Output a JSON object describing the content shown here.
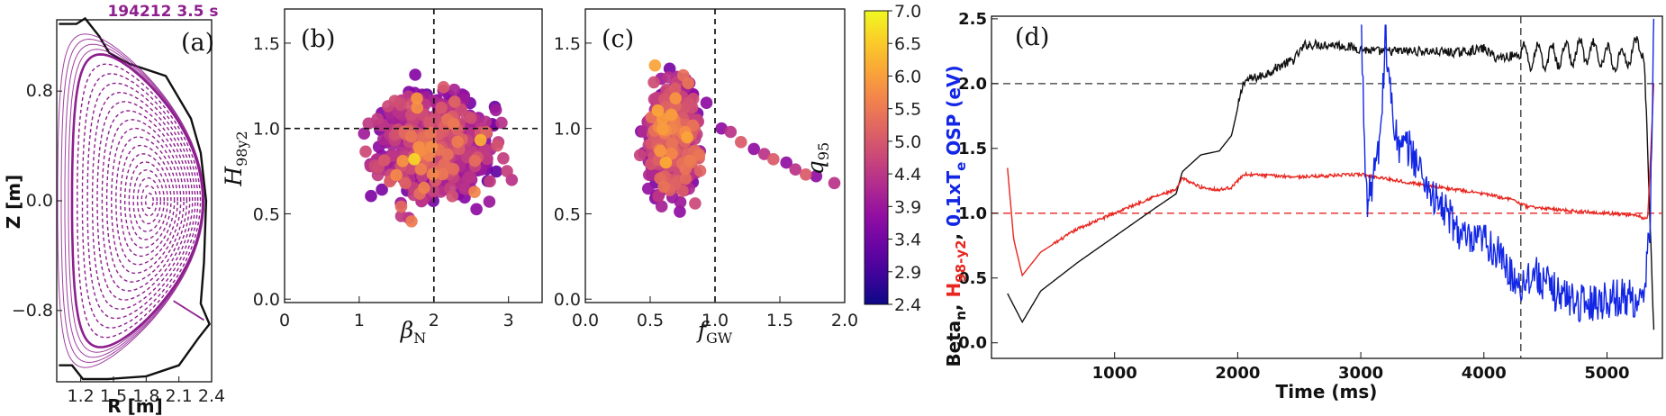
{
  "colors": {
    "purple": "#8e1f8e",
    "black": "#111111",
    "red": "#e8251f",
    "blue": "#1226e6",
    "dashed": "#222222"
  },
  "chart_data": [
    {
      "id": "a",
      "type": "diagram",
      "panel_label": "(a)",
      "title": "194212 3.5 s",
      "xlabel": "R [m]",
      "ylabel": "Z [m]",
      "xlim": [
        0.98,
        2.4
      ],
      "ylim": [
        -1.32,
        1.32
      ],
      "xticks": [
        {
          "v": 1.2,
          "label": "1.2"
        },
        {
          "v": 1.5,
          "label": "1.5"
        },
        {
          "v": 1.8,
          "label": "1.8"
        },
        {
          "v": 2.1,
          "label": "2.1"
        },
        {
          "v": 2.4,
          "label": "2.4"
        }
      ],
      "yticks": [
        {
          "v": 0.8,
          "label": "0.8"
        },
        {
          "v": 0.0,
          "label": "0.0"
        },
        {
          "v": -0.8,
          "label": "−0.8"
        }
      ],
      "equilibrium": {
        "r0": 1.72,
        "a": 0.6,
        "kappa": 1.78,
        "delta": 0.6,
        "axis_r": 1.83,
        "n_flux_surfaces": 16
      },
      "vessel_wall": [
        [
          1.0,
          1.29
        ],
        [
          1.16,
          1.29
        ],
        [
          1.24,
          1.33
        ],
        [
          1.37,
          1.2
        ],
        [
          1.46,
          1.08
        ],
        [
          1.64,
          1.0
        ],
        [
          1.98,
          0.91
        ],
        [
          2.21,
          0.6
        ],
        [
          2.3,
          0.35
        ],
        [
          2.35,
          0.0
        ],
        [
          2.33,
          -0.45
        ],
        [
          2.3,
          -0.75
        ],
        [
          2.38,
          -0.9
        ],
        [
          2.28,
          -1.0
        ],
        [
          2.1,
          -1.2
        ],
        [
          1.8,
          -1.28
        ],
        [
          1.45,
          -1.3
        ],
        [
          1.22,
          -1.3
        ],
        [
          1.12,
          -1.2
        ],
        [
          1.0,
          -1.2
        ]
      ]
    },
    {
      "id": "b",
      "type": "scatter",
      "panel_label": "(b)",
      "xlabel": "βN",
      "ylabel": "H98y2",
      "xlim": [
        0,
        3.45
      ],
      "ylim": [
        -0.02,
        1.7
      ],
      "xticks": [
        {
          "v": 0,
          "label": "0"
        },
        {
          "v": 1,
          "label": "1"
        },
        {
          "v": 2,
          "label": "2"
        },
        {
          "v": 3,
          "label": "3"
        }
      ],
      "yticks": [
        {
          "v": 0.0,
          "label": "0.0"
        },
        {
          "v": 0.5,
          "label": "0.5"
        },
        {
          "v": 1.0,
          "label": "1.0"
        },
        {
          "v": 1.5,
          "label": "1.5"
        }
      ],
      "reference_lines": {
        "x": 2.0,
        "y": 1.0
      },
      "color_by": "q95",
      "n_points": 700,
      "x_mean": 2.0,
      "x_sd": 0.65,
      "y_mean": 0.9,
      "y_sd": 0.27
    },
    {
      "id": "c",
      "type": "scatter",
      "panel_label": "(c)",
      "xlabel": "fGW",
      "ylabel": "",
      "xlim": [
        0,
        2.0
      ],
      "ylim": [
        -0.02,
        1.7
      ],
      "xticks": [
        {
          "v": 0.0,
          "label": "0.0"
        },
        {
          "v": 0.5,
          "label": "0.5"
        },
        {
          "v": 1.0,
          "label": "1.0"
        },
        {
          "v": 1.5,
          "label": "1.5"
        },
        {
          "v": 2.0,
          "label": "2.0"
        }
      ],
      "yticks": [
        {
          "v": 0.0,
          "label": "0.0"
        },
        {
          "v": 0.5,
          "label": "0.5"
        },
        {
          "v": 1.0,
          "label": "1.0"
        },
        {
          "v": 1.5,
          "label": "1.5"
        }
      ],
      "reference_lines": {
        "x": 1.0
      },
      "color_by": "q95",
      "n_points": 700,
      "x_mean": 0.68,
      "x_sd": 0.16,
      "y_mean": 0.95,
      "y_sd": 0.27,
      "tail": [
        [
          1.05,
          1.0
        ],
        [
          1.12,
          0.98
        ],
        [
          1.2,
          0.92
        ],
        [
          1.3,
          0.88
        ],
        [
          1.38,
          0.85
        ],
        [
          1.45,
          0.82
        ],
        [
          1.55,
          0.8
        ],
        [
          1.62,
          0.76
        ],
        [
          1.7,
          0.73
        ],
        [
          1.78,
          0.72
        ],
        [
          1.92,
          0.68
        ]
      ]
    },
    {
      "id": "colorbar",
      "type": "colorbar",
      "label": "q95",
      "range": [
        2.4,
        7.0
      ],
      "ticks": [
        "2.4",
        "2.9",
        "3.4",
        "3.9",
        "4.4",
        "5.0",
        "5.5",
        "6.0",
        "6.5",
        "7.0"
      ],
      "colormap": "plasma"
    },
    {
      "id": "d",
      "type": "line",
      "panel_label": "(d)",
      "xlabel": "Time (ms)",
      "ylabel_parts": [
        {
          "text": "Beta",
          "color": "black"
        },
        {
          "text": "n",
          "color": "black",
          "sub": true
        },
        {
          "text": ", ",
          "color": "black"
        },
        {
          "text": "H",
          "color": "red"
        },
        {
          "text": "98-y2",
          "color": "red",
          "sub": true
        },
        {
          "text": ", ",
          "color": "black"
        },
        {
          "text": "0.1xT",
          "color": "blue"
        },
        {
          "text": "e",
          "color": "blue",
          "sub": true
        },
        {
          "text": " OSP (eV)",
          "color": "blue"
        }
      ],
      "xlim": [
        0,
        5450
      ],
      "ylim": [
        -0.12,
        2.52
      ],
      "xticks": [
        {
          "v": 1000,
          "label": "1000"
        },
        {
          "v": 2000,
          "label": "2000"
        },
        {
          "v": 3000,
          "label": "3000"
        },
        {
          "v": 4000,
          "label": "4000"
        },
        {
          "v": 5000,
          "label": "5000"
        }
      ],
      "yticks": [
        {
          "v": 0.0,
          "label": "0.0"
        },
        {
          "v": 0.5,
          "label": "0.5"
        },
        {
          "v": 1.0,
          "label": "1.0"
        },
        {
          "v": 1.5,
          "label": "1.5"
        },
        {
          "v": 2.0,
          "label": "2.0"
        },
        {
          "v": 2.5,
          "label": "2.5"
        }
      ],
      "reference_lines": {
        "y_black": 2.0,
        "y_red": 1.0,
        "x": 4300
      },
      "series": [
        {
          "name": "Beta_n",
          "color": "black",
          "points": [
            [
              130,
              0.38
            ],
            [
              250,
              0.16
            ],
            [
              400,
              0.4
            ],
            [
              700,
              0.62
            ],
            [
              1000,
              0.82
            ],
            [
              1300,
              1.02
            ],
            [
              1500,
              1.15
            ],
            [
              1550,
              1.32
            ],
            [
              1700,
              1.45
            ],
            [
              1850,
              1.48
            ],
            [
              1950,
              1.6
            ],
            [
              2050,
              2.02
            ],
            [
              2200,
              2.06
            ],
            [
              2350,
              2.14
            ],
            [
              2450,
              2.18
            ],
            [
              2550,
              2.3
            ],
            [
              2800,
              2.3
            ],
            [
              3100,
              2.25
            ],
            [
              3500,
              2.25
            ],
            [
              3800,
              2.24
            ],
            [
              4000,
              2.27
            ],
            [
              4100,
              2.2
            ],
            [
              4300,
              2.22
            ],
            [
              4500,
              2.2
            ],
            [
              4800,
              2.25
            ],
            [
              5100,
              2.18
            ],
            [
              5300,
              2.3
            ],
            [
              5380,
              0.1
            ]
          ],
          "noise": 0.06,
          "noise_from": 2000,
          "oscillate_from": 4300
        },
        {
          "name": "H98-y2",
          "color": "red",
          "points": [
            [
              130,
              1.35
            ],
            [
              180,
              0.8
            ],
            [
              250,
              0.52
            ],
            [
              400,
              0.7
            ],
            [
              700,
              0.88
            ],
            [
              1000,
              1.0
            ],
            [
              1300,
              1.12
            ],
            [
              1500,
              1.18
            ],
            [
              1550,
              1.27
            ],
            [
              1700,
              1.2
            ],
            [
              1850,
              1.18
            ],
            [
              1950,
              1.2
            ],
            [
              2050,
              1.3
            ],
            [
              2500,
              1.28
            ],
            [
              3000,
              1.3
            ],
            [
              3500,
              1.22
            ],
            [
              4000,
              1.15
            ],
            [
              4250,
              1.1
            ],
            [
              4350,
              1.05
            ],
            [
              4700,
              1.02
            ],
            [
              5000,
              1.0
            ],
            [
              5250,
              0.98
            ],
            [
              5330,
              0.95
            ],
            [
              5380,
              2.0
            ]
          ],
          "noise": 0.02,
          "noise_from": 500
        },
        {
          "name": "0.1xTe OSP",
          "color": "blue",
          "points": [
            [
              3000,
              2.45
            ],
            [
              3050,
              1.05
            ],
            [
              3150,
              1.5
            ],
            [
              3200,
              2.25
            ],
            [
              3300,
              1.5
            ],
            [
              3400,
              1.5
            ],
            [
              3500,
              1.3
            ],
            [
              3600,
              1.1
            ],
            [
              3700,
              1.0
            ],
            [
              3800,
              0.85
            ],
            [
              3900,
              0.75
            ],
            [
              4000,
              0.8
            ],
            [
              4100,
              0.7
            ],
            [
              4200,
              0.55
            ],
            [
              4300,
              0.45
            ],
            [
              4400,
              0.55
            ],
            [
              4500,
              0.45
            ],
            [
              4600,
              0.38
            ],
            [
              4700,
              0.35
            ],
            [
              4800,
              0.3
            ],
            [
              4900,
              0.32
            ],
            [
              5000,
              0.34
            ],
            [
              5100,
              0.35
            ],
            [
              5200,
              0.35
            ],
            [
              5300,
              0.3
            ],
            [
              5350,
              0.9
            ],
            [
              5380,
              2.5
            ]
          ],
          "noise": 0.15,
          "noise_from": 3000,
          "spike_at": [
            3000,
            3200
          ]
        }
      ]
    }
  ]
}
